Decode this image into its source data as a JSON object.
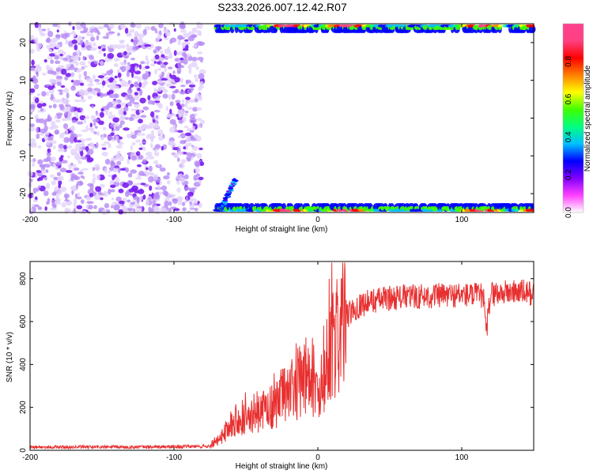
{
  "title": "S233.2026.007.12.42.R07",
  "chart_data": [
    {
      "type": "heatmap",
      "xlabel": "Height of straight line (km)",
      "ylabel": "Frequency (Hz)",
      "xlim": [
        -200,
        150
      ],
      "ylim": [
        -25,
        25
      ],
      "xticks": [
        -200,
        -100,
        0,
        100
      ],
      "yticks": [
        -20,
        -10,
        0,
        10,
        20
      ],
      "colorbar": {
        "label": "Normalized spectral amplitude",
        "range": [
          0,
          1
        ],
        "ticks": [
          "0.0",
          "0.2",
          "0.4",
          "0.6",
          "0.8"
        ],
        "colors": [
          "#ffffff",
          "#ff40ff",
          "#8000ff",
          "#0000ff",
          "#00c0ff",
          "#00ff80",
          "#40ff00",
          "#ffff00",
          "#ff8000",
          "#ff0000",
          "#ff4080",
          "#ff4090"
        ]
      },
      "description_regions": [
        {
          "x_range": [
            -200,
            -85
          ],
          "y_range": [
            -25,
            25
          ],
          "level": "low (0.1-0.3)",
          "pattern": "scattered noise"
        },
        {
          "x_range": [
            -70,
            150
          ],
          "y_range": [
            22,
            25
          ],
          "level": "high (up to 1.0)",
          "pattern": "band near +Nyquist"
        },
        {
          "x_range": [
            -70,
            150
          ],
          "y_range": [
            -25,
            -22
          ],
          "level": "high (up to 1.0)",
          "pattern": "band near -Nyquist"
        },
        {
          "x_range": [
            -70,
            -50
          ],
          "y_range": [
            -25,
            -16
          ],
          "level": "medium",
          "pattern": "streak"
        }
      ]
    },
    {
      "type": "line",
      "xlabel": "Height of straight line (km)",
      "ylabel": "SNR (10 * v/v)",
      "xlim": [
        -200,
        150
      ],
      "ylim": [
        0,
        880
      ],
      "xticks": [
        -200,
        -100,
        0,
        100
      ],
      "yticks": [
        0,
        200,
        400,
        600,
        800
      ],
      "color": "#e83030",
      "envelope": {
        "x": [
          -200,
          -120,
          -80,
          -75,
          -70,
          -65,
          -60,
          -55,
          -50,
          -45,
          -40,
          -35,
          -30,
          -25,
          -20,
          -15,
          -10,
          -5,
          0,
          5,
          10,
          15,
          20,
          25,
          30,
          40,
          50,
          60,
          80,
          100,
          115,
          117,
          120,
          130,
          140,
          150
        ],
        "y": [
          15,
          15,
          18,
          20,
          40,
          80,
          130,
          160,
          150,
          140,
          180,
          200,
          210,
          250,
          260,
          300,
          340,
          320,
          280,
          400,
          470,
          560,
          620,
          660,
          680,
          700,
          710,
          715,
          720,
          725,
          720,
          540,
          730,
          735,
          740,
          730
        ]
      },
      "noise_amplitude_fraction": 0.35
    }
  ]
}
